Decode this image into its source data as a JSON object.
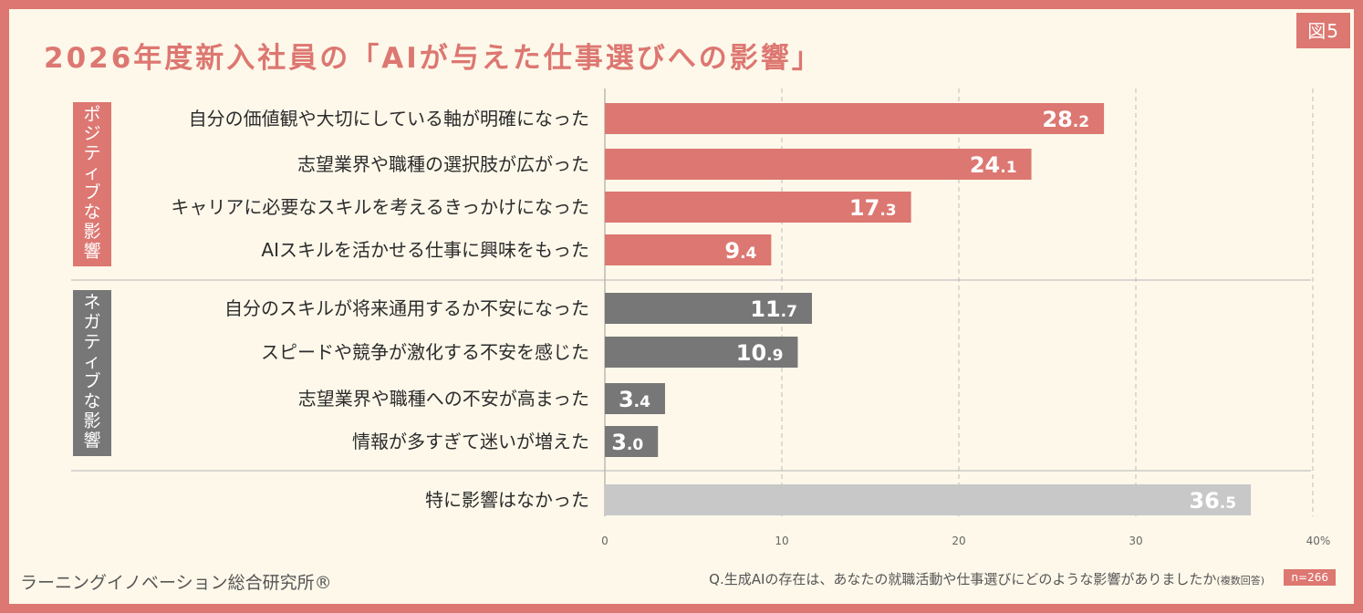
{
  "figure_label": "図5",
  "title": "2026年度新入社員の「AIが与えた仕事選びへの影響」",
  "footer": {
    "brand": "ラーニングイノベーション総合研究所®",
    "question": "Q.生成AIの存在は、あなたの就職活動や仕事選びにどのような影響がありましたか",
    "question_note": "(複数回答)",
    "sample": "n=266"
  },
  "colors": {
    "accent": "#dd7771",
    "negative": "#777777",
    "neutral": "#c8c8c8",
    "background": "#fdf8ea"
  },
  "chart_data": {
    "type": "bar",
    "orientation": "horizontal",
    "xlim": [
      0,
      40
    ],
    "ticks": [
      "0",
      "10",
      "20",
      "30",
      "40%"
    ],
    "tick_values": [
      0,
      10,
      20,
      30,
      40
    ],
    "grid": "dashed-vertical",
    "groups": [
      {
        "name": "ポジティブな影響",
        "color": "#dd7771",
        "items": [
          {
            "label": "自分の価値観や大切にしている軸が明確になった",
            "value": 28.2
          },
          {
            "label": "志望業界や職種の選択肢が広がった",
            "value": 24.1
          },
          {
            "label": "キャリアに必要なスキルを考えるきっかけになった",
            "value": 17.3
          },
          {
            "label": "AIスキルを活かせる仕事に興味をもった",
            "value": 9.4
          }
        ]
      },
      {
        "name": "ネガティブな影響",
        "color": "#777777",
        "items": [
          {
            "label": "自分のスキルが将来通用するか不安になった",
            "value": 11.7
          },
          {
            "label": "スピードや競争が激化する不安を感じた",
            "value": 10.9
          },
          {
            "label": "志望業界や職種への不安が高まった",
            "value": 3.4
          },
          {
            "label": "情報が多すぎて迷いが増えた",
            "value": 3.0
          }
        ]
      },
      {
        "name": "",
        "color": "#c8c8c8",
        "items": [
          {
            "label": "特に影響はなかった",
            "value": 36.5
          }
        ]
      }
    ]
  }
}
